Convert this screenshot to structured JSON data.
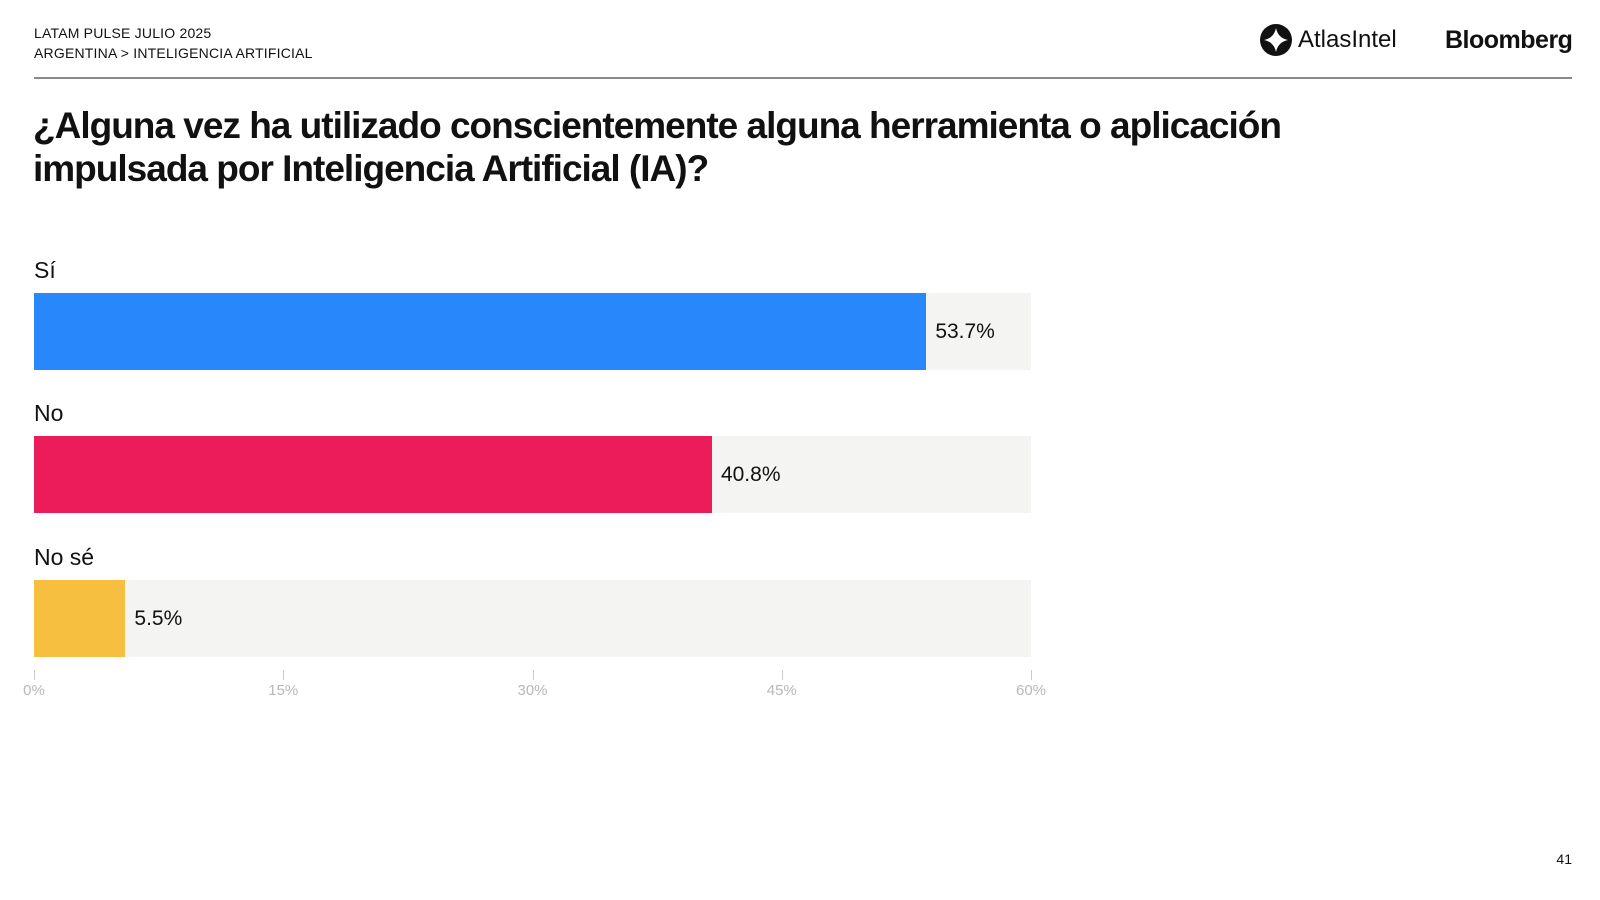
{
  "header": {
    "line1": "LATAM PULSE JULIO 2025",
    "line2": "ARGENTINA > INTELIGENCIA ARTIFICIAL"
  },
  "logos": {
    "atlas": "AtlasIntel",
    "bloomberg": "Bloomberg"
  },
  "page_number": "41",
  "chart_data": {
    "type": "bar",
    "orientation": "horizontal",
    "title": "¿Alguna vez ha utilizado conscientemente alguna herramienta o aplicación impulsada por Inteligencia Artificial (IA)?",
    "categories": [
      "Sí",
      "No",
      "No sé"
    ],
    "values": [
      53.7,
      40.8,
      5.5
    ],
    "value_labels": [
      "53.7%",
      "40.8%",
      "5.5%"
    ],
    "colors": [
      "#2787fb",
      "#ec1c5b",
      "#f7bf40"
    ],
    "xlim": [
      0,
      60
    ],
    "ticks": [
      0,
      15,
      30,
      45,
      60
    ],
    "tick_labels": [
      "0%",
      "15%",
      "30%",
      "45%",
      "60%"
    ],
    "grid": false
  }
}
